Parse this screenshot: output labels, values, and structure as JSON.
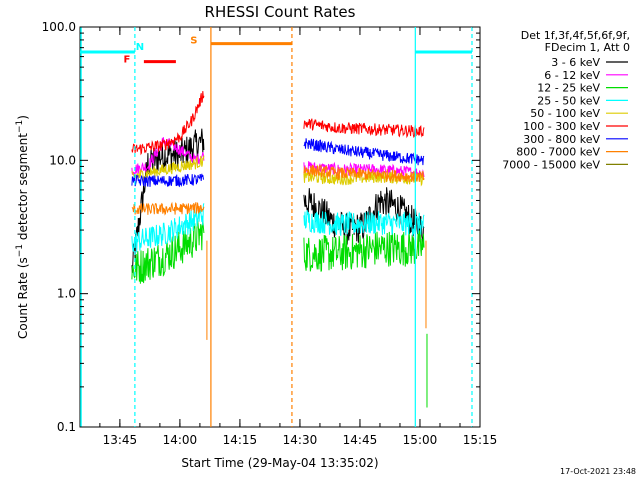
{
  "chart_data": {
    "type": "line",
    "title": "RHESSI Count Rates",
    "xlabel": "Start Time (29-May-04 13:35:02)",
    "ylabel": "Count Rate (s^-1 detector segment^-1)",
    "ylabel_parts": {
      "a": "Count Rate (s",
      "sup1": "−1",
      "b": " detector segment",
      "sup2": "−1",
      "c": ")"
    },
    "y_scale": "log",
    "xlim": [
      "13:35:02",
      "15:15:00"
    ],
    "ylim": [
      0.1,
      100.0
    ],
    "x_ticks": [
      "13:45",
      "14:00",
      "14:15",
      "14:30",
      "14:45",
      "15:00",
      "15:15"
    ],
    "y_ticks": [
      "0.1",
      "1.0",
      "10.0",
      "100.0"
    ],
    "legend": {
      "placement": "right",
      "header": [
        "Det 1f,3f,4f,5f,6f,9f,",
        "FDecim 1, Att 0"
      ],
      "entries": [
        {
          "label": "3 - 6 keV",
          "color": "#000000"
        },
        {
          "label": "6 - 12 keV",
          "color": "#ff00ff"
        },
        {
          "label": "12 - 25 keV",
          "color": "#00dd00"
        },
        {
          "label": "25 - 50 keV",
          "color": "#00ffff"
        },
        {
          "label": "50 - 100 keV",
          "color": "#ddcc00"
        },
        {
          "label": "100 - 300 keV",
          "color": "#ff0000"
        },
        {
          "label": "300 - 800 keV",
          "color": "#0000ff"
        },
        {
          "label": "800 - 7000 keV",
          "color": "#ff8000"
        },
        {
          "label": "7000 - 15000 keV",
          "color": "#808000"
        }
      ]
    },
    "series": [
      {
        "name": "3 - 6 keV",
        "color": "#000000",
        "segments": [
          {
            "x": [
              "13:48",
              "13:52",
              "13:56",
              "14:00",
              "14:04",
              "14:06"
            ],
            "y": [
              1.5,
              9.5,
              11.0,
              11.0,
              13.0,
              14.0
            ]
          },
          {
            "x": [
              "14:31",
              "14:34",
              "14:38",
              "14:42",
              "14:46",
              "14:50",
              "14:54",
              "14:58",
              "15:01"
            ],
            "y": [
              5.0,
              4.5,
              3.5,
              3.0,
              3.2,
              5.0,
              4.5,
              3.5,
              3.0
            ]
          }
        ]
      },
      {
        "name": "6 - 12 keV",
        "color": "#ff00ff",
        "segments": [
          {
            "x": [
              "13:48",
              "13:52",
              "13:56",
              "14:00",
              "14:04",
              "14:06"
            ],
            "y": [
              8.5,
              9.0,
              14.0,
              12.0,
              10.0,
              11.0
            ]
          },
          {
            "x": [
              "14:31",
              "14:40",
              "14:50",
              "15:01"
            ],
            "y": [
              9.0,
              8.5,
              8.5,
              8.0
            ]
          }
        ]
      },
      {
        "name": "12 - 25 keV",
        "color": "#00dd00",
        "segments": [
          {
            "x": [
              "13:48",
              "13:52",
              "13:56",
              "14:00",
              "14:04",
              "14:06"
            ],
            "y": [
              1.5,
              1.7,
              1.9,
              2.2,
              2.6,
              3.0
            ]
          },
          {
            "x": [
              "14:31",
              "14:40",
              "14:50",
              "15:01"
            ],
            "y": [
              2.0,
              2.0,
              2.2,
              2.2
            ]
          }
        ]
      },
      {
        "name": "25 - 50 keV",
        "color": "#00ffff",
        "segments": [
          {
            "x": [
              "13:48",
              "13:52",
              "13:56",
              "14:00",
              "14:04",
              "14:06"
            ],
            "y": [
              2.4,
              2.6,
              2.8,
              3.2,
              3.6,
              4.0
            ]
          },
          {
            "x": [
              "14:31",
              "14:40",
              "14:50",
              "15:01"
            ],
            "y": [
              3.6,
              3.3,
              3.4,
              3.3
            ]
          }
        ]
      },
      {
        "name": "50 - 100 keV",
        "color": "#ddcc00",
        "segments": [
          {
            "x": [
              "13:48",
              "13:52",
              "13:56",
              "14:00",
              "14:04",
              "14:06"
            ],
            "y": [
              7.5,
              8.0,
              8.5,
              9.0,
              9.5,
              10.0
            ]
          },
          {
            "x": [
              "14:31",
              "14:40",
              "14:50",
              "15:01"
            ],
            "y": [
              7.5,
              7.2,
              7.5,
              7.2
            ]
          }
        ]
      },
      {
        "name": "100 - 300 keV",
        "color": "#ff0000",
        "segments": [
          {
            "x": [
              "13:48",
              "13:52",
              "13:56",
              "14:00",
              "14:03",
              "14:06"
            ],
            "y": [
              12.0,
              12.5,
              13.0,
              15.0,
              20.0,
              32.0
            ]
          },
          {
            "x": [
              "14:31",
              "14:40",
              "14:50",
              "15:01"
            ],
            "y": [
              19.0,
              17.5,
              17.0,
              16.5
            ]
          }
        ]
      },
      {
        "name": "300 - 800 keV",
        "color": "#0000ff",
        "segments": [
          {
            "x": [
              "13:48",
              "13:56",
              "14:06"
            ],
            "y": [
              7.0,
              7.0,
              7.2
            ]
          },
          {
            "x": [
              "14:31",
              "14:40",
              "14:50",
              "15:01"
            ],
            "y": [
              13.5,
              12.0,
              11.0,
              10.0
            ]
          }
        ]
      },
      {
        "name": "800 - 7000 keV",
        "color": "#ff8000",
        "segments": [
          {
            "x": [
              "13:48",
              "13:56",
              "14:06"
            ],
            "y": [
              4.3,
              4.3,
              4.4
            ]
          },
          {
            "x": [
              "14:31",
              "14:40",
              "14:50",
              "15:01"
            ],
            "y": [
              8.5,
              8.0,
              7.8,
              7.5
            ]
          }
        ]
      }
    ],
    "annotations": [
      {
        "label": "N",
        "x": "13:48:30",
        "color": "#00ffff"
      },
      {
        "label": "F",
        "x": "13:47",
        "color": "#ff0000"
      },
      {
        "label": "S",
        "x": "14:05",
        "color": "#ff8000"
      }
    ],
    "bars": [
      {
        "label": "N",
        "color": "#00ffff",
        "x0": "13:35:02",
        "x1": "13:48:45",
        "y": 65
      },
      {
        "label": "F",
        "color": "#ff0000",
        "x0": "13:51",
        "x1": "13:59",
        "y": 55
      },
      {
        "label": "S",
        "color": "#ff8000",
        "x0": "14:07:45",
        "x1": "14:28:00",
        "y": 75
      },
      {
        "label": "N",
        "color": "#00ffff",
        "x0": "14:58:50",
        "x1": "15:13:00",
        "y": 65
      }
    ],
    "timestamp": "17-Oct-2021 23:48",
    "grid": false
  }
}
